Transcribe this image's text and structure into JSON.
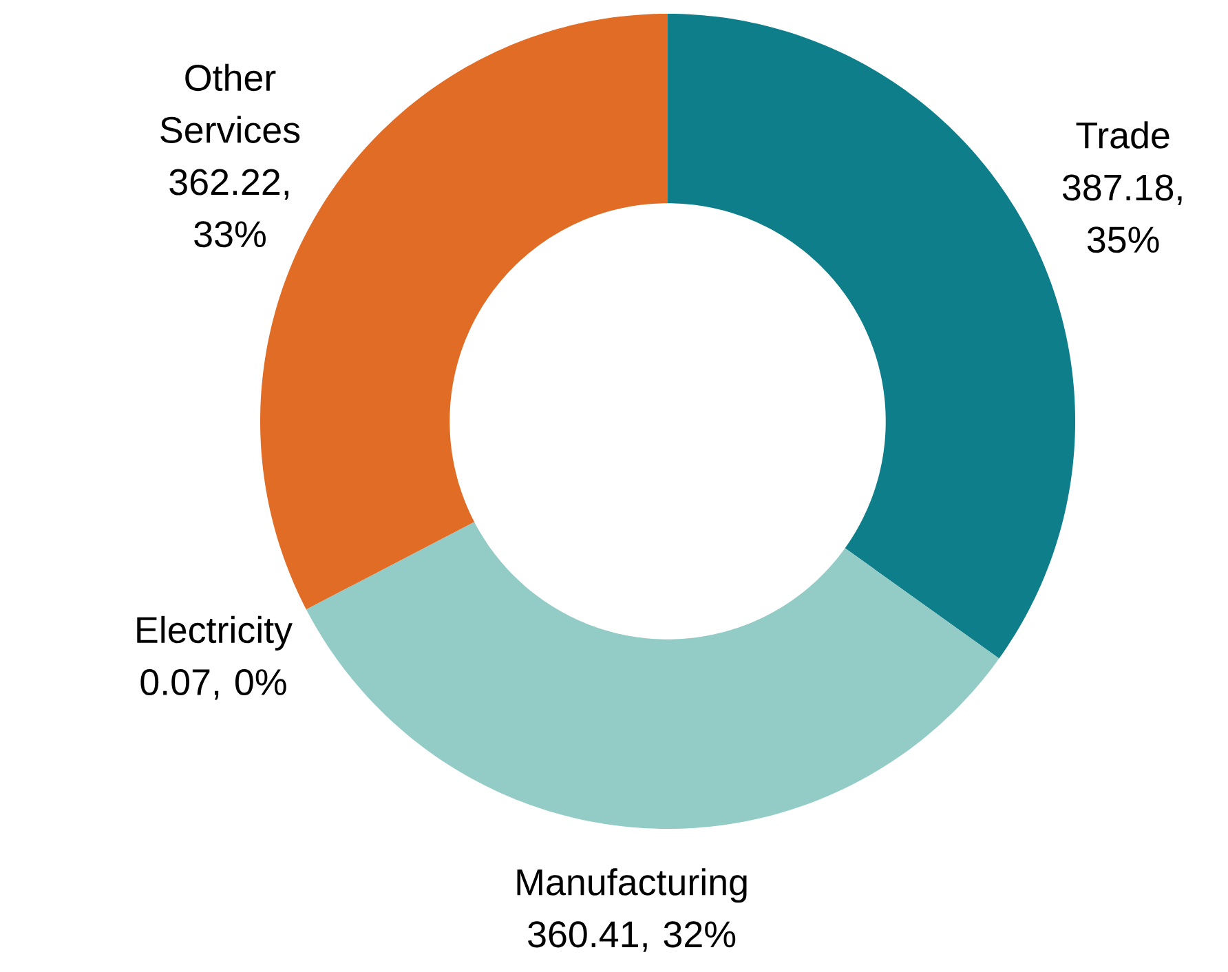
{
  "chart_data": {
    "type": "donut",
    "categories": [
      "Trade",
      "Manufacturing",
      "Electricity",
      "Other Services"
    ],
    "values": [
      387.18,
      360.41,
      0.07,
      362.22
    ],
    "colors": [
      "#0e7f8a",
      "#93ccc6",
      "#5aa6a0",
      "#e06c26"
    ],
    "value_labels": [
      "387.18, 35%",
      "360.41,  32%",
      "0.07, 0%",
      "362.22, 33%"
    ]
  }
}
